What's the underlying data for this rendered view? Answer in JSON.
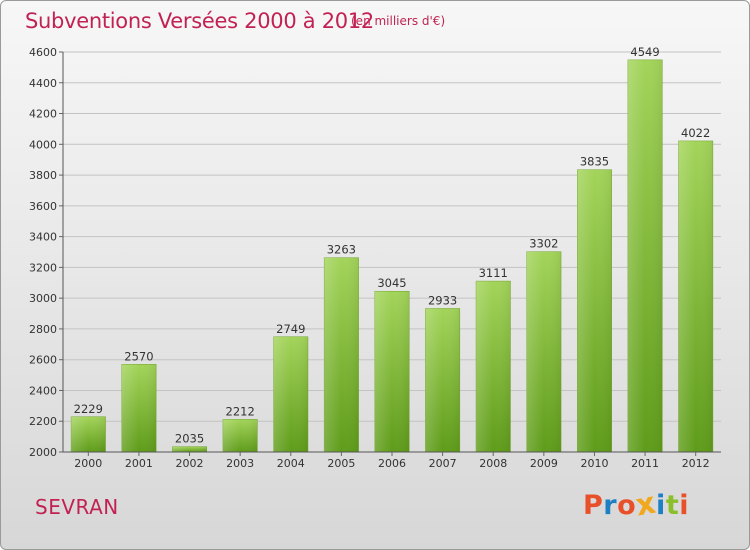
{
  "header": {
    "title": "Subventions Versées 2000 à 2012",
    "subtitle": "(en milliers d'€)"
  },
  "footer": {
    "place": "SEVRAN",
    "logo": "Proxiti",
    "logo_colors": [
      "#e8502a",
      "#1d7fc4",
      "#e8502a",
      "#f2a81d",
      "#1d7fc4",
      "#8bbf2a",
      "#e8502a"
    ]
  },
  "chart_data": {
    "type": "bar",
    "title": "Subventions Versées 2000 à 2012",
    "subtitle": "(en milliers d'€)",
    "xlabel": "",
    "ylabel": "",
    "categories": [
      "2000",
      "2001",
      "2002",
      "2003",
      "2004",
      "2005",
      "2006",
      "2007",
      "2008",
      "2009",
      "2010",
      "2011",
      "2012"
    ],
    "values": [
      2229,
      2570,
      2035,
      2212,
      2749,
      3263,
      3045,
      2933,
      3111,
      3302,
      3835,
      4549,
      4022
    ],
    "ylim": [
      2000,
      4600
    ],
    "yticks": [
      2000,
      2200,
      2400,
      2600,
      2800,
      3000,
      3200,
      3400,
      3600,
      3800,
      4000,
      4200,
      4400,
      4600
    ],
    "grid": true,
    "legend": "none",
    "bar_color_top": "#a3d45a",
    "bar_color_bottom": "#5f9c1a"
  }
}
